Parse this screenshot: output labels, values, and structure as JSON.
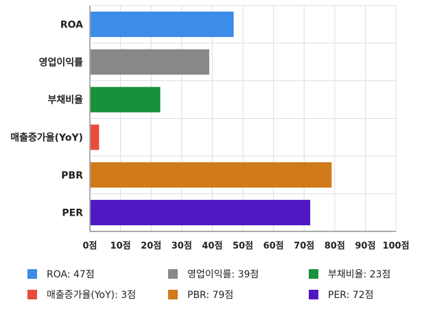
{
  "chart_data": {
    "type": "bar",
    "orientation": "horizontal",
    "categories": [
      "ROA",
      "영업이익률",
      "부채비율",
      "매출증가율(YoY)",
      "PBR",
      "PER"
    ],
    "values": [
      47,
      39,
      23,
      3,
      79,
      72
    ],
    "colors": [
      "#3b8de8",
      "#888888",
      "#17913a",
      "#e84c3d",
      "#d07a1a",
      "#5018c2"
    ],
    "xlim": [
      0,
      100
    ],
    "xticks": [
      0,
      10,
      20,
      30,
      40,
      50,
      60,
      70,
      80,
      90,
      100
    ],
    "xtick_labels": [
      "0점",
      "10점",
      "20점",
      "30점",
      "40점",
      "50점",
      "60점",
      "70점",
      "80점",
      "90점",
      "100점"
    ],
    "grid": true,
    "legend_position": "bottom",
    "legend": [
      "ROA: 47점",
      "영업이익률: 39점",
      "부채비율: 23점",
      "매출증가율(YoY): 3점",
      "PBR: 79점",
      "PER: 72점"
    ]
  }
}
